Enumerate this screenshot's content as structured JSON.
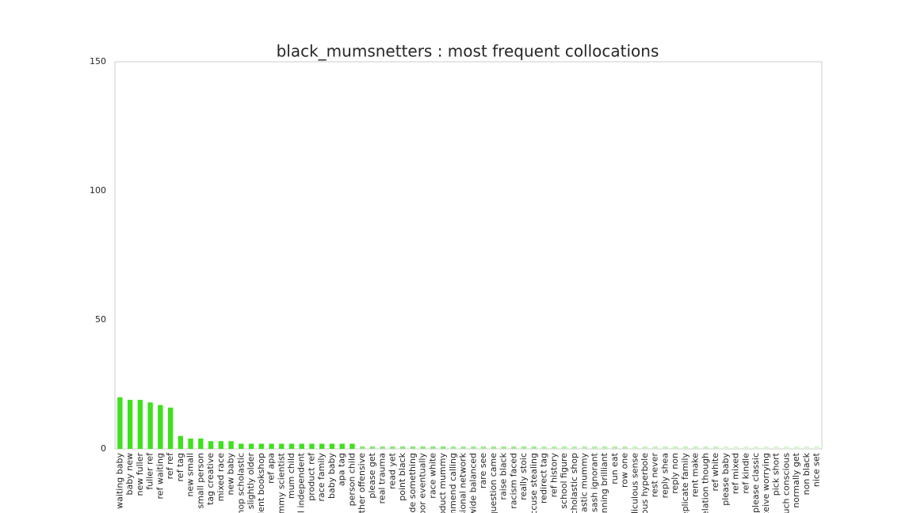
{
  "chart_data": {
    "type": "bar",
    "title": "black_mumsnetters : most frequent collocations",
    "categories": [
      "waiting baby",
      "baby new",
      "new fuller",
      "fuller ref",
      "ref waiting",
      "ref ref",
      "ref tag",
      "new small",
      "small person",
      "tag creative",
      "mixed race",
      "new baby",
      "hop scholastic",
      "slightly older",
      "dent bookshop",
      "ref apa",
      "ummy scientist",
      "mum child",
      "al independent",
      "product ref",
      "race family",
      "baby baby",
      "apa tag",
      "person child",
      "ather offensive",
      "please get",
      "real trauma",
      "read yet",
      "point black",
      "ade something",
      "oor eventually",
      "race white",
      "roduct mummy",
      "mmend calling",
      "sional network",
      "wide balanced",
      "rare see",
      "question came",
      "raise black",
      "racism faced",
      "really stoic",
      "ccuse stealing",
      "redirect tag",
      "ref history",
      "school figure",
      "cholastic shop",
      "olastic mummy",
      "sash ignorant",
      "unning brilliant",
      "run eat",
      "row one",
      "diculous sense",
      "ous hyperbole",
      "rest never",
      "reply shea",
      "reply non",
      "eplicate family",
      "rent make",
      "elation though",
      "ref white",
      "please baby",
      "ref mixed",
      "ref kindle",
      "please classic",
      "ceive worrying",
      "pick short",
      "uch conscious",
      "normally get",
      "non black",
      "nice set"
    ],
    "values": [
      20,
      19,
      19,
      18,
      17,
      16,
      5,
      4,
      4,
      3,
      3,
      3,
      2,
      2,
      2,
      2,
      2,
      2,
      2,
      2,
      2,
      2,
      2,
      2,
      1,
      1,
      1,
      1,
      1,
      1,
      1,
      1,
      1,
      1,
      1,
      1,
      1,
      1,
      1,
      1,
      1,
      1,
      1,
      1,
      1,
      1,
      1,
      1,
      1,
      1,
      1,
      1,
      1,
      1,
      1,
      1,
      1,
      1,
      1,
      1,
      1,
      1,
      1,
      1,
      1,
      1,
      1,
      1,
      1,
      1
    ],
    "colors": [
      "#3fe01e",
      "#3fe01e",
      "#3fe01e",
      "#3fe01e",
      "#3fe01e",
      "#3fe01e",
      "#3fe01e",
      "#3fe01e",
      "#3fe01e",
      "#3fe01e",
      "#3fe01e",
      "#3fe01e",
      "#3fe01e",
      "#3fe01e",
      "#3fe01e",
      "#3fe01e",
      "#3fe01e",
      "#3fe01e",
      "#3fe01e",
      "#3fe01e",
      "#3fe01e",
      "#3fe01e",
      "#3fe01e",
      "#3fe01e",
      "#8fe67c",
      "#8fe67c",
      "#8fe67c",
      "#8fe67c",
      "#8fe67c",
      "#8fe67c",
      "#8fe67c",
      "#8fe67c",
      "#8fe67c",
      "#a3ea94",
      "#a3ea94",
      "#a3ea94",
      "#a3ea94",
      "#a3ea94",
      "#a3ea94",
      "#a3ea94",
      "#a3ea94",
      "#a3ea94",
      "#b6eeaa",
      "#b6eeaa",
      "#b6eeaa",
      "#b6eeaa",
      "#b6eeaa",
      "#b6eeaa",
      "#b6eeaa",
      "#b6eeaa",
      "#b6eeaa",
      "#c8f2bf",
      "#c8f2bf",
      "#c8f2bf",
      "#c8f2bf",
      "#c8f2bf",
      "#c8f2bf",
      "#c8f2bf",
      "#c8f2bf",
      "#c8f2bf",
      "#d9f6d2",
      "#d9f6d2",
      "#d9f6d2",
      "#d9f6d2",
      "#d9f6d2",
      "#d9f6d2",
      "#d9f6d2",
      "#d9f6d2",
      "#d9f6d2",
      "#d9f6d2"
    ],
    "ylim": [
      0,
      150
    ],
    "yticks": [
      0,
      50,
      100,
      150
    ],
    "grid": false
  }
}
